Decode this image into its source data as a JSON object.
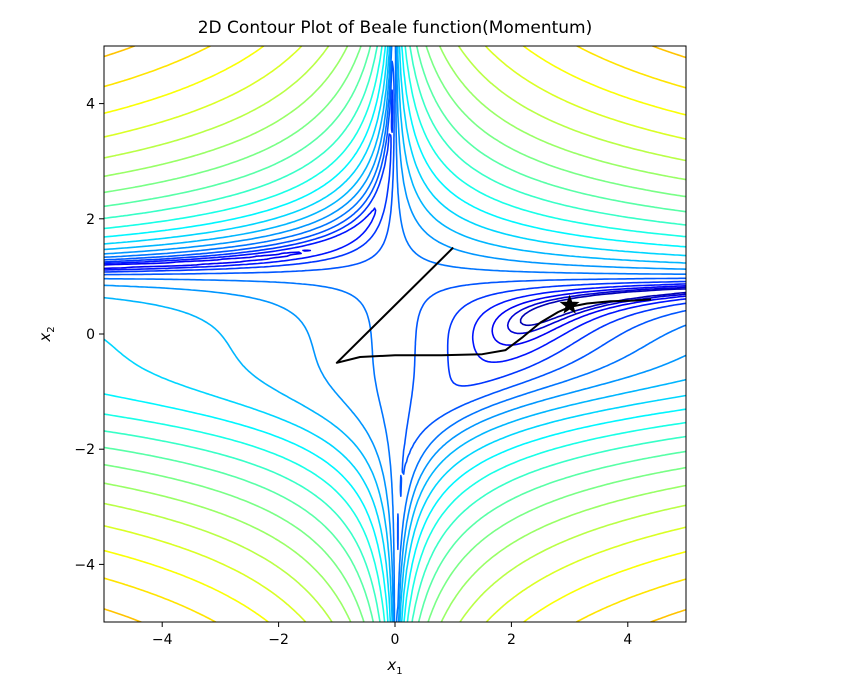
{
  "chart_data": {
    "type": "contour",
    "title": "2D Contour Plot of Beale function(Momentum)",
    "xlabel": {
      "base": "x",
      "sub": "1"
    },
    "ylabel": {
      "base": "x",
      "sub": "2"
    },
    "xlim": [
      -5,
      5
    ],
    "ylim": [
      -5,
      5
    ],
    "xticks": [
      -4,
      -2,
      0,
      2,
      4
    ],
    "yticks": [
      -4,
      -2,
      0,
      2,
      4
    ],
    "xtick_labels": [
      "−4",
      "−2",
      "0",
      "2",
      "4"
    ],
    "ytick_labels": [
      "−4",
      "−2",
      "0",
      "2",
      "4"
    ],
    "function": "beale",
    "colormap": "jet",
    "contour_levels_log10": [
      -0.5,
      -0.2,
      0.1,
      0.4,
      0.7,
      1.0,
      1.3,
      1.6,
      1.9,
      2.2,
      2.5,
      2.8,
      3.1,
      3.4,
      3.7,
      4.0,
      4.3,
      4.6,
      4.9,
      5.2,
      5.5,
      5.8,
      6.1,
      6.4,
      6.7,
      7.0,
      7.3,
      7.6,
      7.9,
      8.2,
      8.5
    ],
    "grid": false,
    "optimizer_path": {
      "color": "#000000",
      "points": [
        [
          1.0,
          1.5
        ],
        [
          -1.0,
          -0.5
        ],
        [
          -0.6,
          -0.4
        ],
        [
          0.0,
          -0.37
        ],
        [
          0.8,
          -0.37
        ],
        [
          1.5,
          -0.35
        ],
        [
          1.9,
          -0.28
        ],
        [
          2.2,
          -0.05
        ],
        [
          2.5,
          0.2
        ],
        [
          2.8,
          0.38
        ],
        [
          3.0,
          0.47
        ],
        [
          3.3,
          0.53
        ],
        [
          3.7,
          0.57
        ],
        [
          4.1,
          0.58
        ],
        [
          4.4,
          0.6
        ]
      ]
    },
    "minimum_marker": {
      "x": 3.0,
      "y": 0.5,
      "symbol": "star",
      "color": "#000000"
    }
  }
}
